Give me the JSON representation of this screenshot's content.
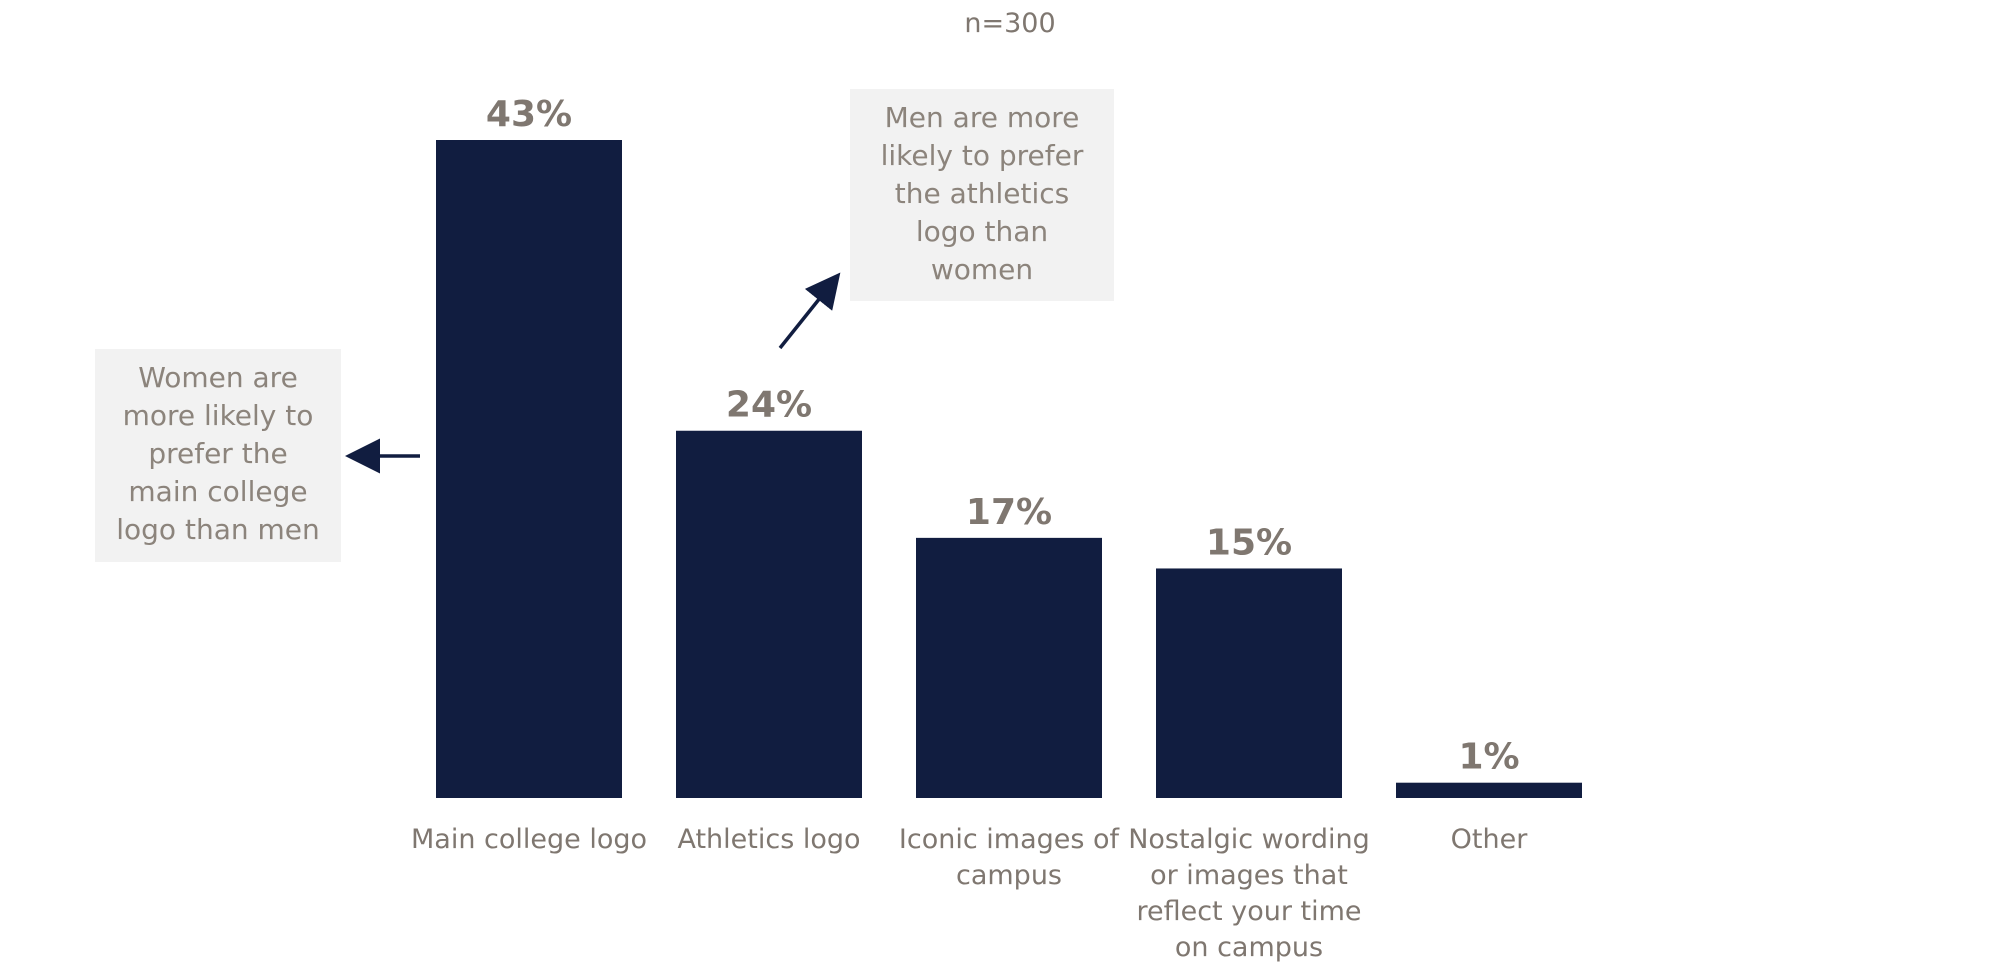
{
  "subtitle": "n=300",
  "callouts": {
    "women": {
      "lines": [
        "Women are",
        "more likely to",
        "prefer the",
        "main college",
        "logo than men"
      ]
    },
    "men": {
      "lines": [
        "Men are more",
        "likely to prefer",
        "the athletics",
        "logo than",
        "women"
      ]
    }
  },
  "colors": {
    "bar": "#111d40",
    "value_label": "#7f7770",
    "category_label": "#7f7770",
    "arrow": "#111d40",
    "callout_bg": "#f2f2f2"
  },
  "chart_data": {
    "type": "bar",
    "subtitle": "n=300",
    "categories": [
      "Main college logo",
      "Athletics logo",
      "Iconic images of campus",
      "Nostalgic wording or images that reflect your time on campus",
      "Other"
    ],
    "category_lines": [
      [
        "Main college logo"
      ],
      [
        "Athletics logo"
      ],
      [
        "Iconic images of",
        "campus"
      ],
      [
        "Nostalgic wording",
        "or images that",
        "reflect your time",
        "on campus"
      ],
      [
        "Other"
      ]
    ],
    "values": [
      43,
      24,
      17,
      15,
      1
    ],
    "value_labels": [
      "43%",
      "24%",
      "17%",
      "15%",
      "1%"
    ],
    "ylim": [
      0,
      43
    ],
    "grid": false,
    "legend": false
  }
}
